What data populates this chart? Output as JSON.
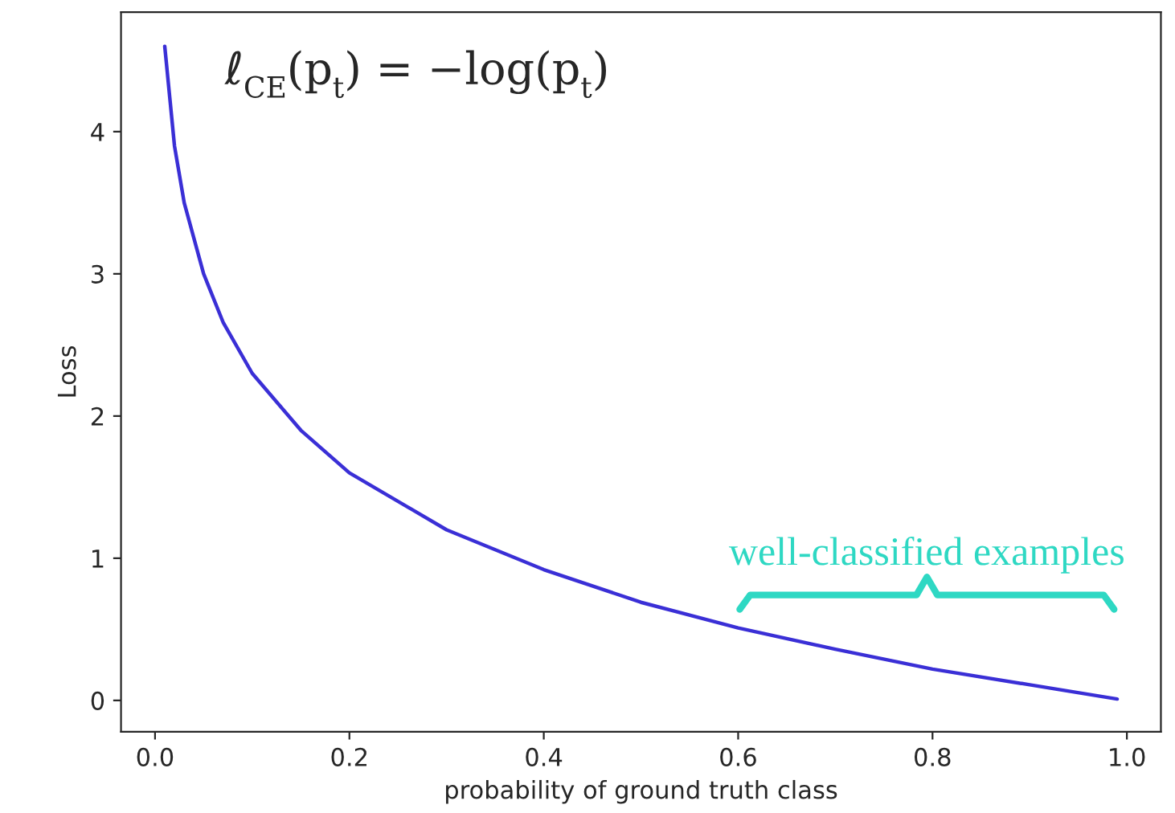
{
  "chart_data": {
    "type": "line",
    "title": "ℓ$_{CE}$(p$_{t}$) = −log(p$_{t}$)",
    "xlabel": "probability of ground truth class",
    "ylabel": "Loss",
    "x": [
      0.01,
      0.02,
      0.03,
      0.05,
      0.07,
      0.1,
      0.15,
      0.2,
      0.3,
      0.4,
      0.5,
      0.6,
      0.7,
      0.8,
      0.9,
      0.99
    ],
    "series": [
      {
        "color": "#3a2fd6",
        "values": [
          4.6,
          3.9,
          3.5,
          3.0,
          2.66,
          2.3,
          1.9,
          1.6,
          1.2,
          0.92,
          0.69,
          0.51,
          0.36,
          0.22,
          0.11,
          0.01
        ]
      }
    ],
    "xlim": [
      -0.035,
      1.035
    ],
    "ylim": [
      -0.22,
      4.84
    ],
    "xticks": [
      {
        "value": 0,
        "label": "0.0"
      },
      0.2,
      0.4,
      0.6,
      0.8,
      {
        "value": 1,
        "label": "1.0"
      }
    ],
    "yticks": [
      0,
      1,
      2,
      3,
      4
    ],
    "annotations": [
      "well-classified examples"
    ],
    "grid": false,
    "legend": false
  }
}
